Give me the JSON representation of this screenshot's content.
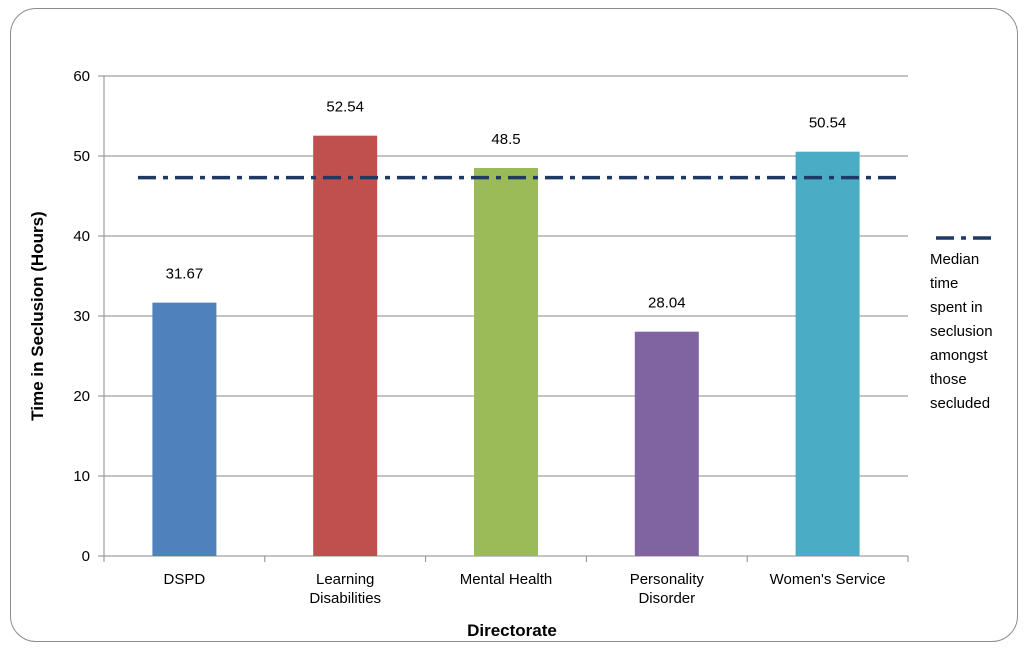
{
  "chart_data": {
    "type": "bar",
    "title": "",
    "xlabel": "Directorate",
    "ylabel": "Time in Seclusion (Hours)",
    "ylim": [
      0,
      60
    ],
    "yticks": [
      0,
      10,
      20,
      30,
      40,
      50,
      60
    ],
    "grid": true,
    "legend_position": "right",
    "categories": [
      [
        "DSPD"
      ],
      [
        "Learning",
        "Disabilities"
      ],
      [
        "Mental Health"
      ],
      [
        "Personality",
        "Disorder"
      ],
      [
        "Women's Service"
      ]
    ],
    "values": [
      31.67,
      52.54,
      48.5,
      28.04,
      50.54
    ],
    "value_labels": [
      "31.67",
      "52.54",
      "48.5",
      "28.04",
      "50.54"
    ],
    "colors": [
      "#4f81bd",
      "#c0504d",
      "#9bbb59",
      "#8064a2",
      "#4bacc6"
    ],
    "reference_line": {
      "value": 47.3,
      "color": "#1f3864",
      "style": "dash-dot",
      "legend_lines": [
        "Median",
        "time",
        "spent in",
        "seclusion",
        "amongst",
        "those",
        "secluded"
      ]
    }
  }
}
